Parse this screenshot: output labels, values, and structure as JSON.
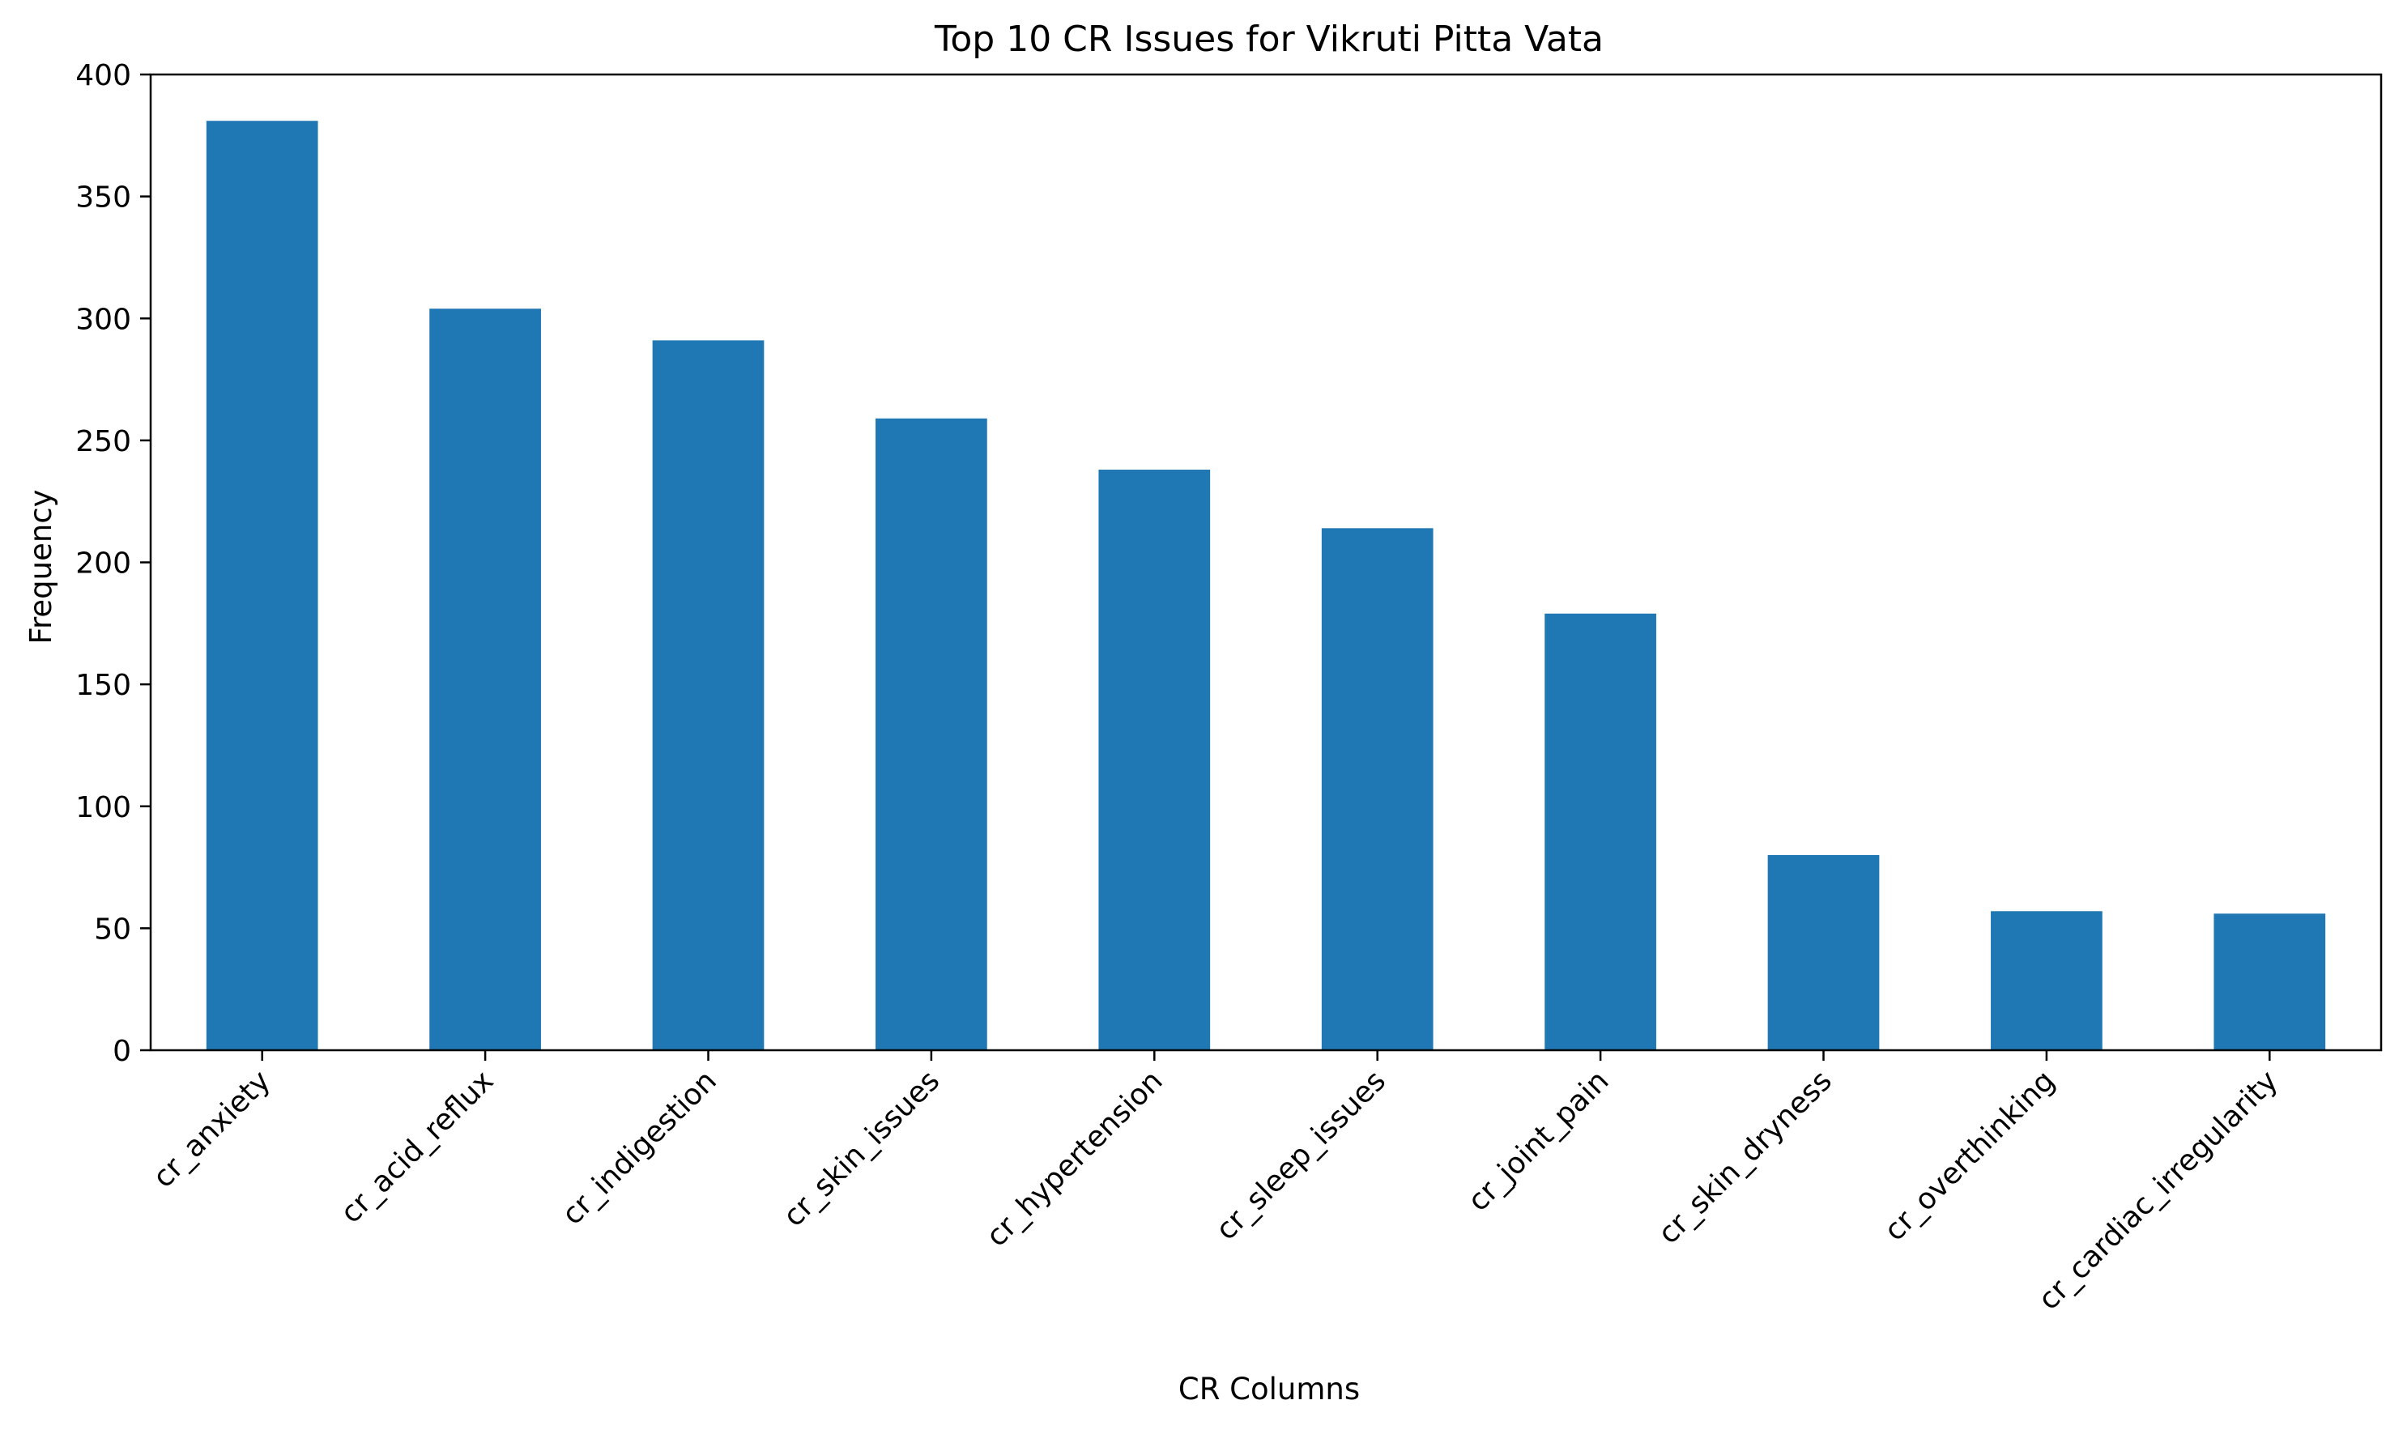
{
  "chart_data": {
    "type": "bar",
    "title": "Top 10 CR Issues for Vikruti Pitta Vata",
    "xlabel": "CR Columns",
    "ylabel": "Frequency",
    "categories": [
      "cr_anxiety",
      "cr_acid_reflux",
      "cr_indigestion",
      "cr_skin_issues",
      "cr_hypertension",
      "cr_sleep_issues",
      "cr_joint_pain",
      "cr_skin_dryness",
      "cr_overthinking",
      "cr_cardiac_irregularity"
    ],
    "values": [
      381,
      304,
      291,
      259,
      238,
      214,
      179,
      80,
      57,
      56
    ],
    "ylim": [
      0,
      400
    ],
    "yticks": [
      0,
      50,
      100,
      150,
      200,
      250,
      300,
      350,
      400
    ],
    "grid": false,
    "legend": false,
    "colors": {
      "bar": "#1f77b4",
      "axis": "#000000"
    }
  }
}
